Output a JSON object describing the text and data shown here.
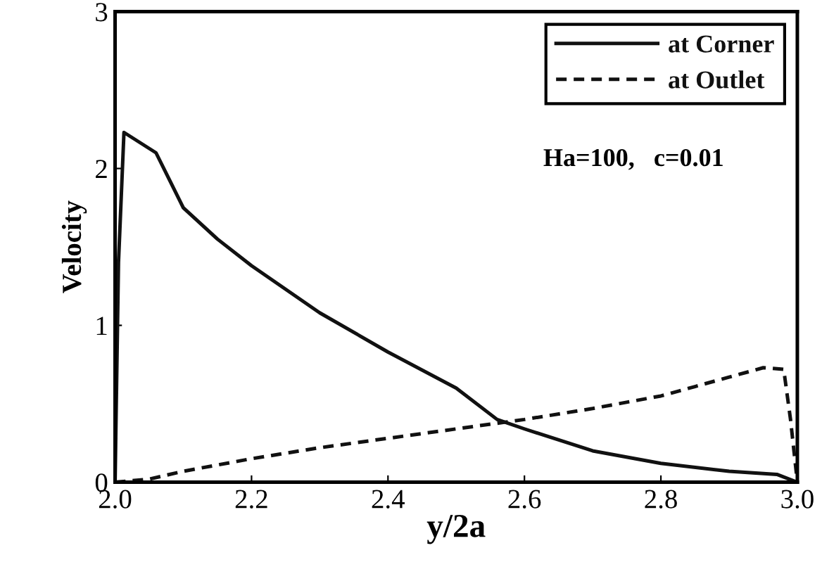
{
  "chart_data": {
    "type": "line",
    "xlabel": "y/2a",
    "ylabel": "Velocity",
    "xlim": [
      2.0,
      3.0
    ],
    "ylim": [
      0,
      3
    ],
    "xticks": [
      {
        "value": 2,
        "label": "2.0"
      },
      2.2,
      2.4,
      2.6,
      2.8,
      {
        "value": 3,
        "label": "3.0"
      }
    ],
    "yticks": [
      0,
      1,
      2,
      3
    ],
    "grid": false,
    "legend": "top right",
    "annotations": [
      "Ha=100,   c=0.01"
    ],
    "series": [
      {
        "name": "at Corner",
        "color": "#111111",
        "line_style": "solid",
        "x": [
          2.0,
          2.005,
          2.013,
          2.06,
          2.1,
          2.15,
          2.2,
          2.3,
          2.4,
          2.5,
          2.56,
          2.6,
          2.7,
          2.8,
          2.9,
          2.97,
          3.0
        ],
        "values": [
          0,
          1.4,
          2.23,
          2.1,
          1.75,
          1.55,
          1.38,
          1.08,
          0.83,
          0.6,
          0.4,
          0.34,
          0.2,
          0.12,
          0.07,
          0.05,
          0
        ]
      },
      {
        "name": "at Outlet",
        "color": "#111111",
        "line_style": "dashed",
        "x": [
          2.0,
          2.05,
          2.1,
          2.2,
          2.3,
          2.4,
          2.5,
          2.6,
          2.7,
          2.8,
          2.85,
          2.9,
          2.95,
          2.98,
          2.99,
          3.0
        ],
        "values": [
          0,
          0.02,
          0.07,
          0.15,
          0.22,
          0.28,
          0.34,
          0.4,
          0.47,
          0.55,
          0.61,
          0.67,
          0.73,
          0.72,
          0.4,
          0
        ]
      }
    ]
  }
}
